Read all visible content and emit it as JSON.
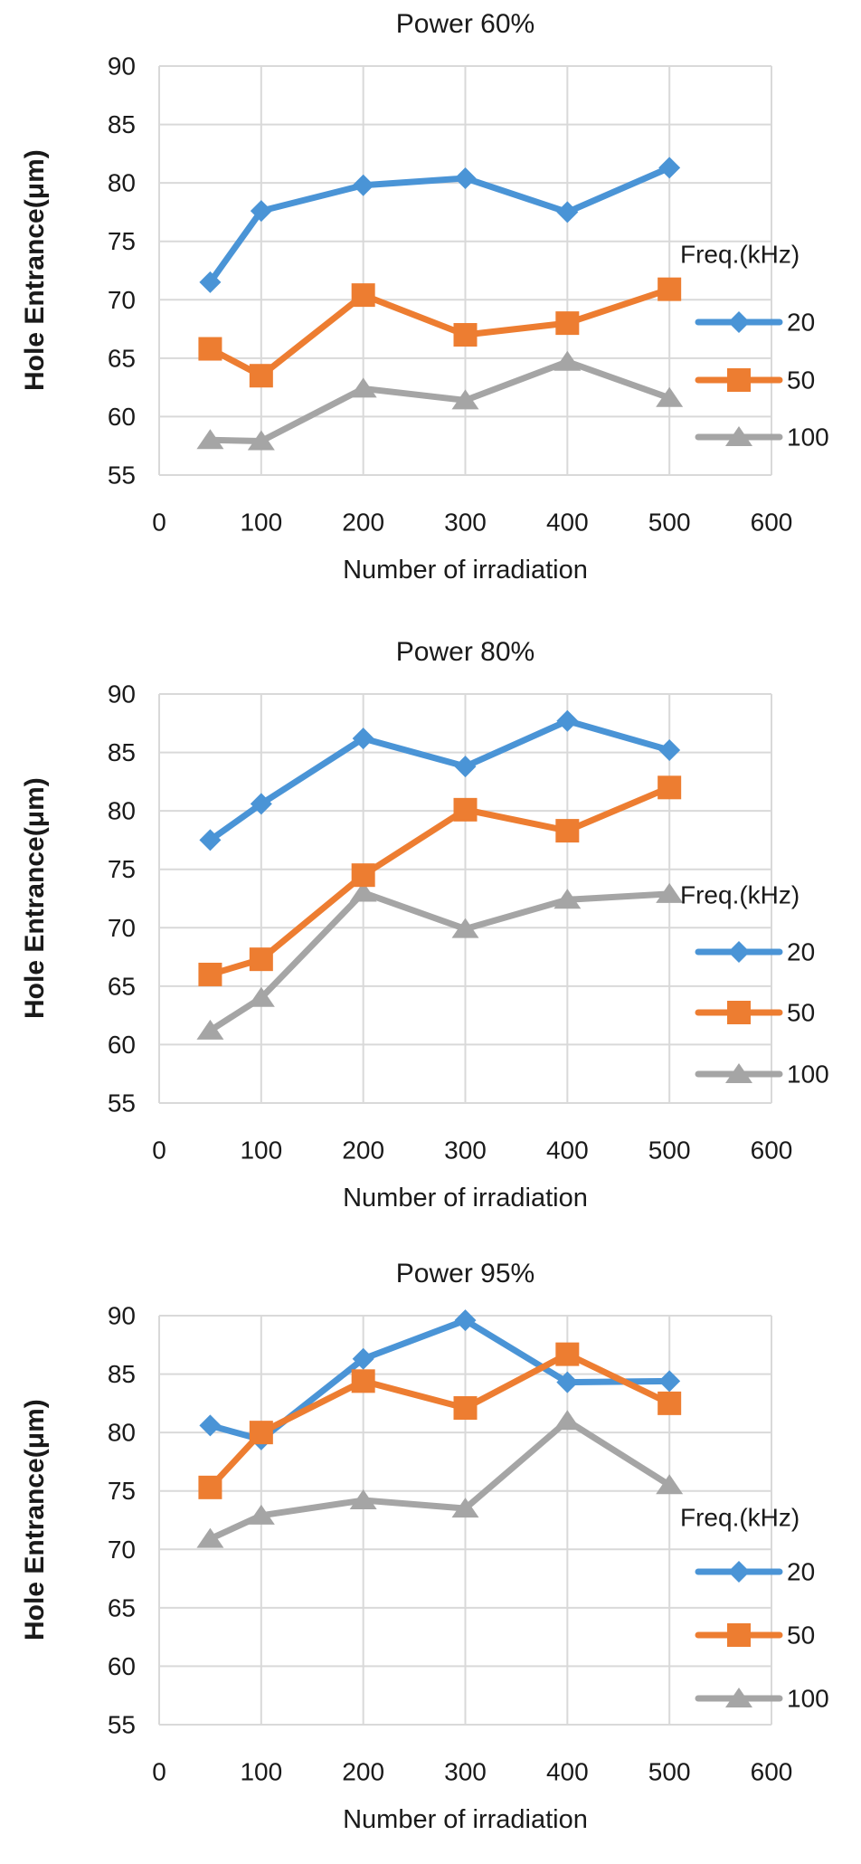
{
  "colors": {
    "background": "#FFFFFF",
    "gridline": "#D9D9D9",
    "text": "#1A1A1A",
    "series_20kHz": "#4A94D6",
    "series_50kHz": "#ED7D31",
    "series_100kHz": "#A5A5A5"
  },
  "chart_data": [
    {
      "type": "line",
      "title": "Power 60%",
      "xlabel": "Number of irradiation",
      "ylabel": "Hole Entrance(μm)",
      "x": [
        50,
        100,
        200,
        300,
        400,
        500
      ],
      "x_ticks": [
        0,
        100,
        200,
        300,
        400,
        500,
        600
      ],
      "y_ticks": [
        90,
        85,
        80,
        75,
        70,
        65,
        60,
        55
      ],
      "xlim": [
        0,
        600
      ],
      "ylim": [
        55,
        90
      ],
      "grid": true,
      "legend": {
        "title": "Freq.(kHz)",
        "position": "right-inside"
      },
      "series": [
        {
          "name": "20",
          "marker": "diamond",
          "color": "#4A94D6",
          "values": [
            71.5,
            77.6,
            79.8,
            80.4,
            77.5,
            81.3
          ]
        },
        {
          "name": "50",
          "marker": "square",
          "color": "#ED7D31",
          "values": [
            65.8,
            63.5,
            70.4,
            67.0,
            68.0,
            70.9
          ]
        },
        {
          "name": "100",
          "marker": "triangle",
          "color": "#A5A5A5",
          "values": [
            58.0,
            57.9,
            62.4,
            61.4,
            64.7,
            61.6
          ]
        }
      ]
    },
    {
      "type": "line",
      "title": "Power 80%",
      "xlabel": "Number of irradiation",
      "ylabel": "Hole Entrance(μm)",
      "x": [
        50,
        100,
        200,
        300,
        400,
        500
      ],
      "x_ticks": [
        0,
        100,
        200,
        300,
        400,
        500,
        600
      ],
      "y_ticks": [
        90,
        85,
        80,
        75,
        70,
        65,
        60,
        55
      ],
      "xlim": [
        0,
        600
      ],
      "ylim": [
        55,
        90
      ],
      "grid": true,
      "legend": {
        "title": "Freq.(kHz)",
        "position": "right-inside"
      },
      "series": [
        {
          "name": "20",
          "marker": "diamond",
          "color": "#4A94D6",
          "values": [
            77.5,
            80.6,
            86.2,
            83.8,
            87.7,
            85.2
          ]
        },
        {
          "name": "50",
          "marker": "square",
          "color": "#ED7D31",
          "values": [
            66.0,
            67.3,
            74.5,
            80.1,
            78.3,
            82.0
          ]
        },
        {
          "name": "100",
          "marker": "triangle",
          "color": "#A5A5A5",
          "values": [
            61.2,
            64.0,
            73.0,
            69.9,
            72.4,
            72.9
          ]
        }
      ]
    },
    {
      "type": "line",
      "title": "Power 95%",
      "xlabel": "Number of irradiation",
      "ylabel": "Hole Entrance(μm)",
      "x": [
        50,
        100,
        200,
        300,
        400,
        500
      ],
      "x_ticks": [
        0,
        100,
        200,
        300,
        400,
        500,
        600
      ],
      "y_ticks": [
        90,
        85,
        80,
        75,
        70,
        65,
        60,
        55
      ],
      "xlim": [
        0,
        600
      ],
      "ylim": [
        55,
        90
      ],
      "grid": true,
      "legend": {
        "title": "Freq.(kHz)",
        "position": "right-inside"
      },
      "series": [
        {
          "name": "20",
          "marker": "diamond",
          "color": "#4A94D6",
          "values": [
            80.6,
            79.4,
            86.3,
            89.6,
            84.3,
            84.4
          ]
        },
        {
          "name": "50",
          "marker": "square",
          "color": "#ED7D31",
          "values": [
            75.3,
            80.0,
            84.4,
            82.1,
            86.7,
            82.5
          ]
        },
        {
          "name": "100",
          "marker": "triangle",
          "color": "#A5A5A5",
          "values": [
            70.9,
            72.9,
            74.2,
            73.5,
            81.0,
            75.5
          ]
        }
      ]
    }
  ]
}
